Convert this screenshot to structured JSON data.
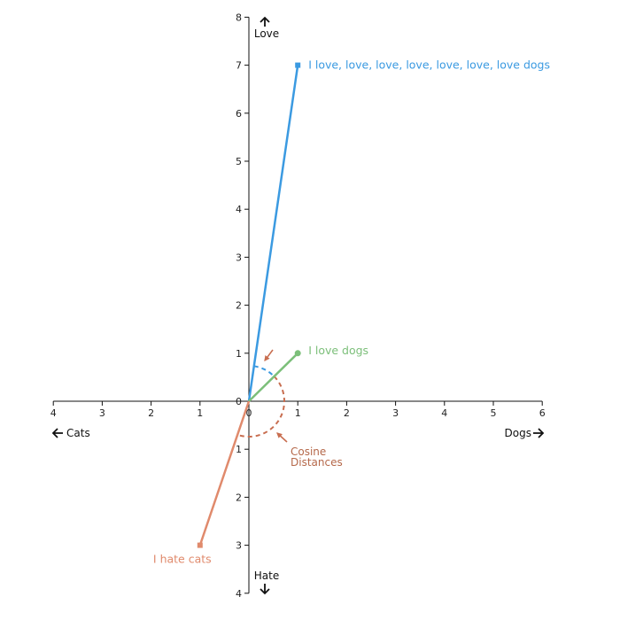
{
  "chart_data": {
    "type": "line",
    "xlim": [
      -4,
      6
    ],
    "ylim": [
      -4,
      8
    ],
    "grid": false,
    "x_ticks": [
      {
        "value": -4,
        "label": "4"
      },
      {
        "value": -3,
        "label": "3"
      },
      {
        "value": -2,
        "label": "2"
      },
      {
        "value": -1,
        "label": "1"
      },
      {
        "value": 0,
        "label": "0"
      },
      {
        "value": 1,
        "label": "1"
      },
      {
        "value": 2,
        "label": "2"
      },
      {
        "value": 3,
        "label": "3"
      },
      {
        "value": 4,
        "label": "4"
      },
      {
        "value": 5,
        "label": "5"
      },
      {
        "value": 6,
        "label": "6"
      }
    ],
    "y_ticks": [
      {
        "value": -4,
        "label": "4"
      },
      {
        "value": -3,
        "label": "3"
      },
      {
        "value": -2,
        "label": "2"
      },
      {
        "value": -1,
        "label": "1"
      },
      {
        "value": 0,
        "label": "0"
      },
      {
        "value": 1,
        "label": "1"
      },
      {
        "value": 2,
        "label": "2"
      },
      {
        "value": 3,
        "label": "3"
      },
      {
        "value": 4,
        "label": "4"
      },
      {
        "value": 5,
        "label": "5"
      },
      {
        "value": 6,
        "label": "6"
      },
      {
        "value": 7,
        "label": "7"
      },
      {
        "value": 8,
        "label": "8"
      }
    ],
    "directions": {
      "up": "Love",
      "down": "Hate",
      "left": "Cats",
      "right": "Dogs"
    },
    "series": [
      {
        "name": "I love, love, love, love, love, love, love dogs",
        "x": [
          0,
          1
        ],
        "y": [
          0,
          7
        ],
        "color": "#3b9ae1"
      },
      {
        "name": "I love dogs",
        "x": [
          0,
          1
        ],
        "y": [
          0,
          1
        ],
        "color": "#7cbf7a"
      },
      {
        "name": "I hate cats",
        "x": [
          0,
          -1
        ],
        "y": [
          0,
          -3
        ],
        "color": "#e08a6c"
      }
    ],
    "annotation": {
      "lines": [
        "Cosine",
        "Distances"
      ],
      "color": "#c86e50"
    }
  }
}
